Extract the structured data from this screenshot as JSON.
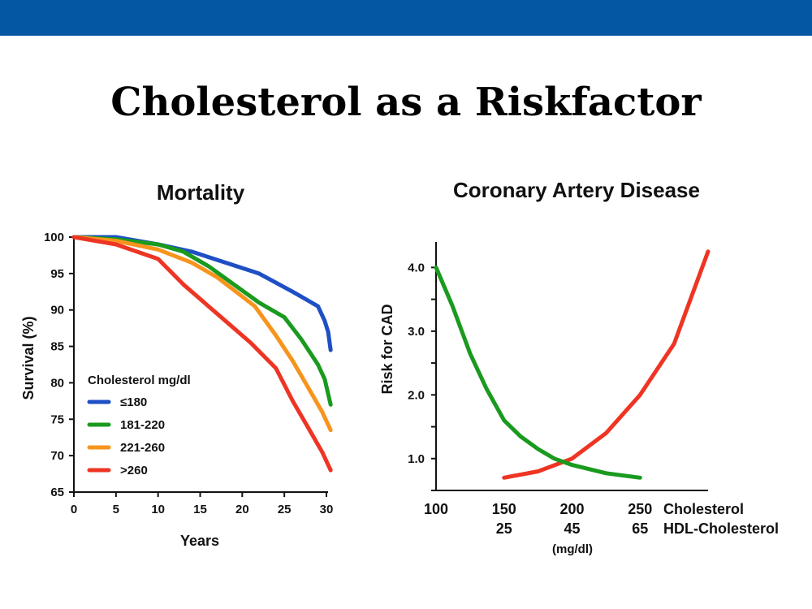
{
  "slide": {
    "title": "Cholesterol as a Riskfactor"
  },
  "colors": {
    "header_bar": "#0457a3"
  },
  "chart_data": [
    {
      "type": "line",
      "title": "Mortality",
      "xlabel": "Years",
      "ylabel": "Survival (%)",
      "xlim": [
        0,
        30
      ],
      "ylim": [
        65,
        100
      ],
      "xticks": [
        0,
        5,
        10,
        15,
        20,
        25,
        30
      ],
      "yticks": [
        65,
        70,
        75,
        80,
        85,
        90,
        95,
        100
      ],
      "grid": false,
      "legend": {
        "title": "Cholesterol mg/dl",
        "placement": "bottom-left"
      },
      "series": [
        {
          "name": "≤180",
          "color": "#1e4fc4",
          "points": [
            [
              0,
              100
            ],
            [
              5,
              100
            ],
            [
              10,
              99
            ],
            [
              14,
              98
            ],
            [
              18,
              96.5
            ],
            [
              22,
              95
            ],
            [
              26,
              92.5
            ],
            [
              29,
              90.5
            ],
            [
              29.8,
              88.5
            ],
            [
              30.2,
              87
            ],
            [
              30.5,
              84.5
            ]
          ]
        },
        {
          "name": "181-220",
          "color": "#1a9a1e",
          "points": [
            [
              0,
              100
            ],
            [
              5,
              99.7
            ],
            [
              10,
              99
            ],
            [
              13,
              98
            ],
            [
              16,
              96
            ],
            [
              19,
              93.5
            ],
            [
              22,
              91
            ],
            [
              25,
              89
            ],
            [
              27,
              86
            ],
            [
              29,
              82.5
            ],
            [
              29.8,
              80.5
            ],
            [
              30.5,
              77
            ]
          ]
        },
        {
          "name": "221-260",
          "color": "#f7941d",
          "points": [
            [
              0,
              100
            ],
            [
              5,
              99.5
            ],
            [
              10,
              98.3
            ],
            [
              14,
              96.5
            ],
            [
              17,
              94.5
            ],
            [
              19.5,
              92.3
            ],
            [
              21.5,
              90.5
            ],
            [
              24,
              86.5
            ],
            [
              26,
              83
            ],
            [
              28,
              79
            ],
            [
              29.5,
              76
            ],
            [
              30.5,
              73.5
            ]
          ]
        },
        {
          "name": ">260",
          "color": "#ee3524",
          "points": [
            [
              0,
              100
            ],
            [
              5,
              99
            ],
            [
              10,
              97
            ],
            [
              13,
              93.5
            ],
            [
              17,
              89.5
            ],
            [
              21,
              85.5
            ],
            [
              24,
              82
            ],
            [
              26,
              77.5
            ],
            [
              28,
              73.5
            ],
            [
              29.5,
              70.5
            ],
            [
              30.5,
              68
            ]
          ]
        }
      ]
    },
    {
      "type": "line",
      "title": "Coronary Artery Disease",
      "ylabel": "Risk for CAD",
      "xlabel_unit": "(mg/dl)",
      "xlim": [
        100,
        300
      ],
      "ylim": [
        0.5,
        4.4
      ],
      "yticks": [
        1.0,
        2.0,
        3.0,
        4.0
      ],
      "yticks_minor": [
        0.5,
        1.5,
        2.5,
        3.5
      ],
      "grid": false,
      "x_axes": [
        {
          "name": "Cholesterol",
          "color": "#ee3524",
          "ticks": [
            100,
            150,
            200,
            250
          ]
        },
        {
          "name": "HDL-Cholesterol",
          "color": "#1a9a1e",
          "ticks": [
            25,
            45,
            65
          ]
        }
      ],
      "series": [
        {
          "name": "Cholesterol",
          "color": "#ee3524",
          "points": [
            [
              150,
              0.7
            ],
            [
              175,
              0.8
            ],
            [
              200,
              1.0
            ],
            [
              225,
              1.4
            ],
            [
              250,
              2.0
            ],
            [
              275,
              2.8
            ],
            [
              300,
              4.25
            ]
          ]
        },
        {
          "name": "HDL-Cholesterol",
          "color": "#1a9a1e",
          "points": [
            [
              100,
              4.0
            ],
            [
              112,
              3.4
            ],
            [
              125,
              2.65
            ],
            [
              137,
              2.1
            ],
            [
              150,
              1.6
            ],
            [
              162,
              1.35
            ],
            [
              175,
              1.15
            ],
            [
              187,
              1.0
            ],
            [
              200,
              0.9
            ],
            [
              225,
              0.77
            ],
            [
              250,
              0.7
            ]
          ]
        }
      ]
    }
  ]
}
